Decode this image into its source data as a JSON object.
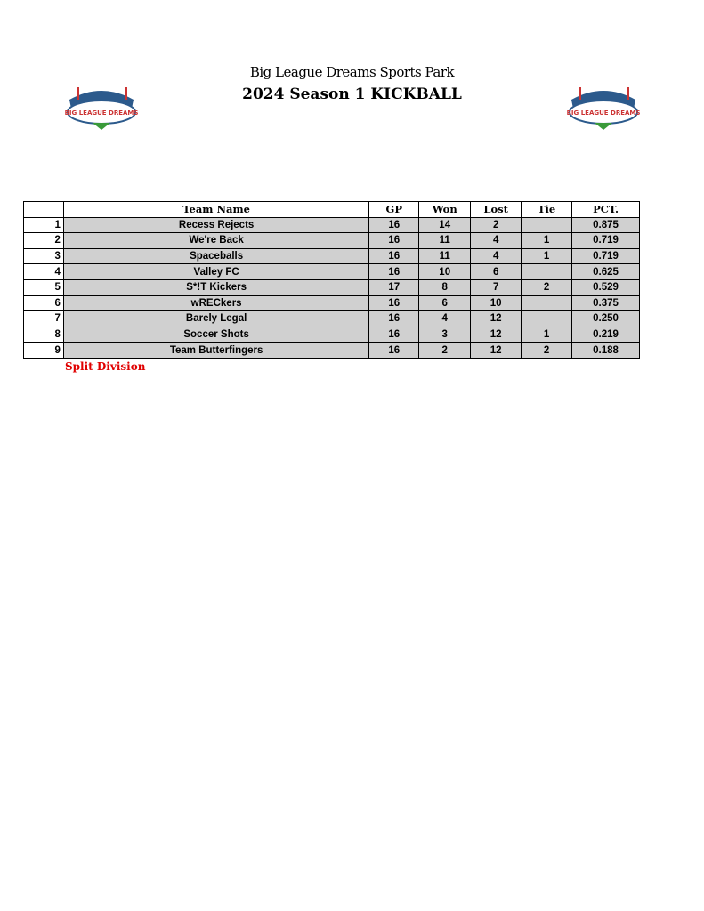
{
  "header": {
    "title": "Big League Dreams Sports Park",
    "subtitle": "2024 Season 1 KICKBALL",
    "logo_text": "BIG LEAGUE DREAMS"
  },
  "table": {
    "columns": [
      "",
      "Team Name",
      "GP",
      "Won",
      "Lost",
      "Tie",
      "PCT."
    ],
    "rows": [
      [
        "1",
        "Recess Rejects",
        "16",
        "14",
        "2",
        "",
        "0.875"
      ],
      [
        "2",
        "We're Back",
        "16",
        "11",
        "4",
        "1",
        "0.719"
      ],
      [
        "3",
        "Spaceballs",
        "16",
        "11",
        "4",
        "1",
        "0.719"
      ],
      [
        "4",
        "Valley FC",
        "16",
        "10",
        "6",
        "",
        "0.625"
      ],
      [
        "5",
        "S*!T Kickers",
        "17",
        "8",
        "7",
        "2",
        "0.529"
      ],
      [
        "6",
        "wRECkers",
        "16",
        "6",
        "10",
        "",
        "0.375"
      ],
      [
        "7",
        "Barely Legal",
        "16",
        "4",
        "12",
        "",
        "0.250"
      ],
      [
        "8",
        "Soccer Shots",
        "16",
        "3",
        "12",
        "1",
        "0.219"
      ],
      [
        "9",
        "Team Butterfingers",
        "16",
        "2",
        "12",
        "2",
        "0.188"
      ]
    ]
  },
  "footnote": "Split Division",
  "colors": {
    "footnote": "#e00000",
    "cell": "#d0d0d0"
  }
}
